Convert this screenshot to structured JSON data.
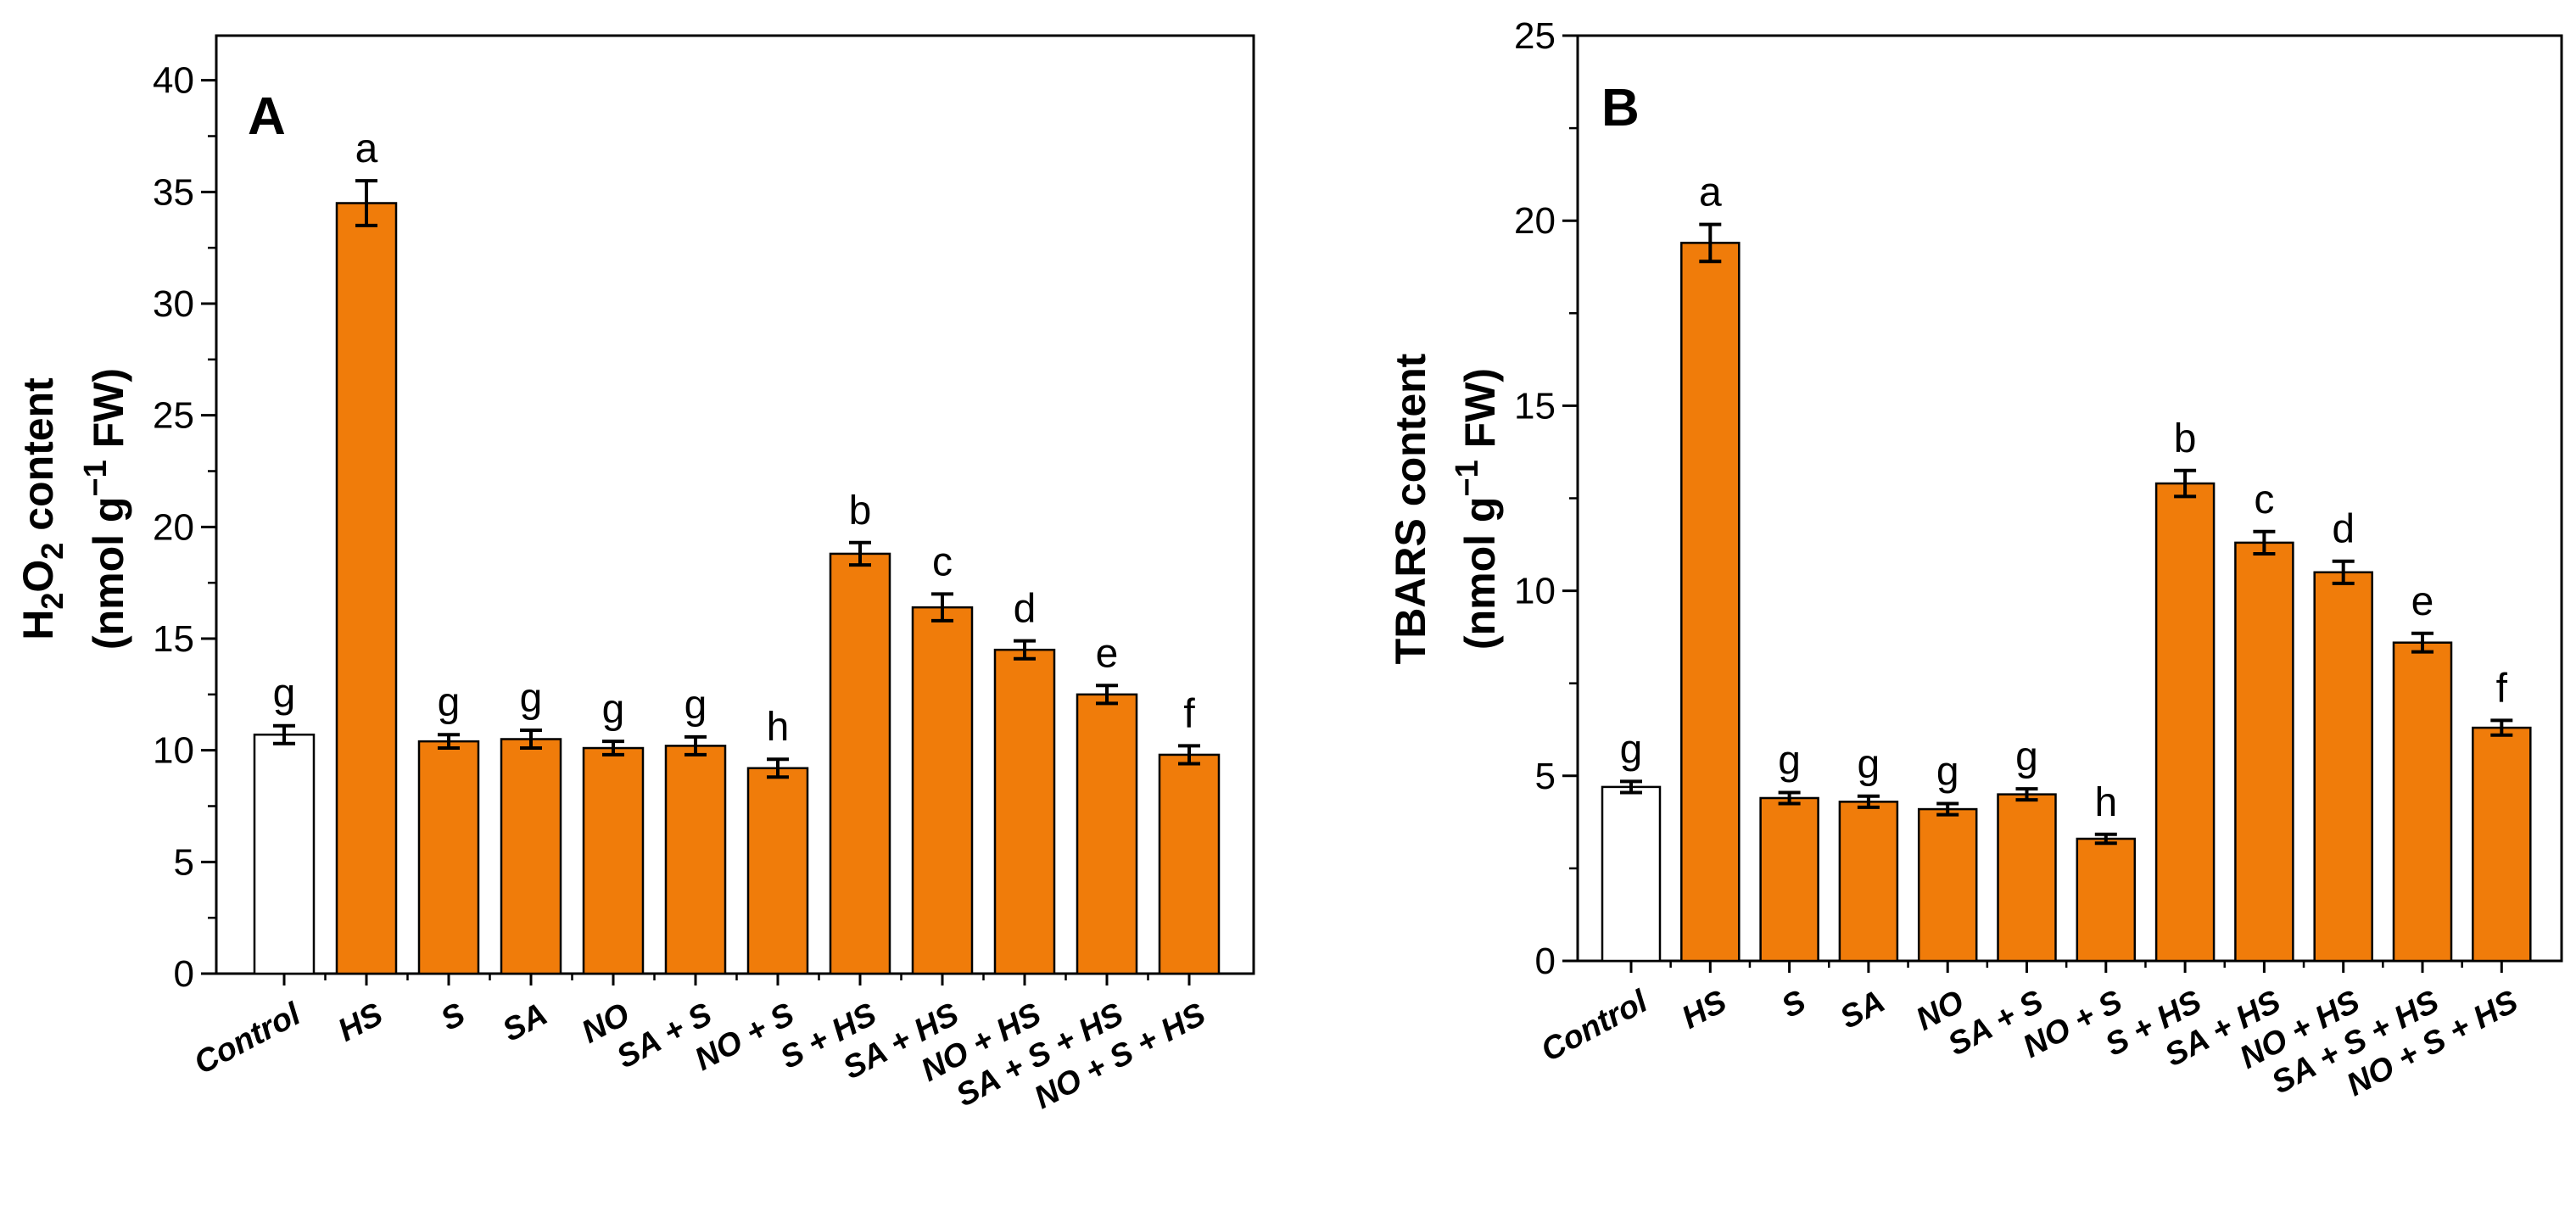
{
  "chart_data": [
    {
      "type": "bar",
      "panel": "A",
      "ylabel_parts": {
        "line1": {
          "h": "H",
          "sub1": "2",
          "o": "O",
          "sub2": "2",
          "rest": " content"
        },
        "line2": {
          "pre": "(nmol g",
          "sup": "−1",
          "post": " FW)"
        }
      },
      "ylim": [
        0,
        42
      ],
      "yticks": [
        "0",
        "5",
        "10",
        "15",
        "20",
        "25",
        "30",
        "35",
        "40"
      ],
      "categories": [
        "Control",
        "HS",
        "S",
        "SA",
        "NO",
        "SA + S",
        "NO + S",
        "S + HS",
        "SA + HS",
        "NO + HS",
        "SA + S + HS",
        "NO + S + HS"
      ],
      "values": [
        10.7,
        34.5,
        10.4,
        10.5,
        10.1,
        10.2,
        9.2,
        18.8,
        16.4,
        14.5,
        12.5,
        9.8
      ],
      "errors": [
        0.4,
        1.0,
        0.3,
        0.4,
        0.3,
        0.4,
        0.4,
        0.5,
        0.6,
        0.4,
        0.4,
        0.4
      ],
      "letters": [
        "g",
        "a",
        "g",
        "g",
        "g",
        "g",
        "h",
        "b",
        "c",
        "d",
        "e",
        "f"
      ],
      "colors": [
        "#ffffff",
        "#f07c0a",
        "#f07c0a",
        "#f07c0a",
        "#f07c0a",
        "#f07c0a",
        "#f07c0a",
        "#f07c0a",
        "#f07c0a",
        "#f07c0a",
        "#f07c0a",
        "#f07c0a"
      ]
    },
    {
      "type": "bar",
      "panel": "B",
      "ylabel_parts": {
        "line1": {
          "text": "TBARS content"
        },
        "line2": {
          "pre": "(nmol g",
          "sup": "−1",
          "post": " FW)"
        }
      },
      "ylim": [
        0,
        25
      ],
      "yticks": [
        "0",
        "5",
        "10",
        "15",
        "20",
        "25"
      ],
      "categories": [
        "Control",
        "HS",
        "S",
        "SA",
        "NO",
        "SA + S",
        "NO + S",
        "S + HS",
        "SA + HS",
        "NO + HS",
        "SA + S + HS",
        "NO + S + HS"
      ],
      "values": [
        4.7,
        19.4,
        4.4,
        4.3,
        4.1,
        4.5,
        3.3,
        12.9,
        11.3,
        10.5,
        8.6,
        6.3
      ],
      "errors": [
        0.15,
        0.5,
        0.15,
        0.15,
        0.15,
        0.15,
        0.12,
        0.35,
        0.3,
        0.3,
        0.25,
        0.2
      ],
      "letters": [
        "g",
        "a",
        "g",
        "g",
        "g",
        "g",
        "h",
        "b",
        "c",
        "d",
        "e",
        "f"
      ],
      "colors": [
        "#ffffff",
        "#f07c0a",
        "#f07c0a",
        "#f07c0a",
        "#f07c0a",
        "#f07c0a",
        "#f07c0a",
        "#f07c0a",
        "#f07c0a",
        "#f07c0a",
        "#f07c0a",
        "#f07c0a"
      ]
    }
  ]
}
